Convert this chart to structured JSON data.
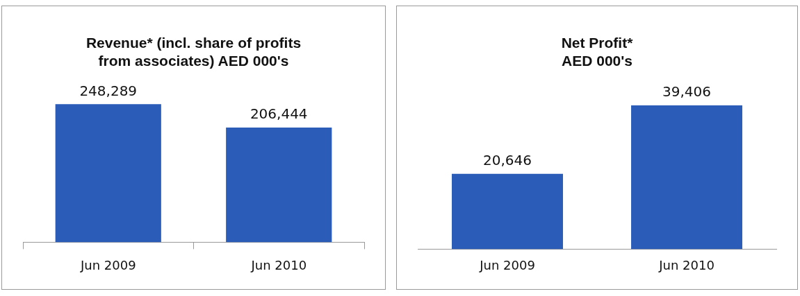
{
  "chart_data": [
    {
      "type": "bar",
      "title": "Revenue* (incl. share of profits from associates) AED 000's",
      "categories": [
        "Jun 2009",
        "Jun 2010"
      ],
      "values": [
        248289,
        206444
      ],
      "value_labels": [
        "248,289",
        "206,444"
      ],
      "color": "#2a5cb8",
      "grid": false,
      "legend": false,
      "tick_labels": "x"
    },
    {
      "type": "bar",
      "title": "Net Profit* AED 000's",
      "categories": [
        "Jun 2009",
        "Jun 2010"
      ],
      "values": [
        20646,
        39406
      ],
      "value_labels": [
        "20,646",
        "39,406"
      ],
      "color": "#2a5cb8",
      "grid": false,
      "legend": false,
      "tick_labels": "x"
    }
  ]
}
